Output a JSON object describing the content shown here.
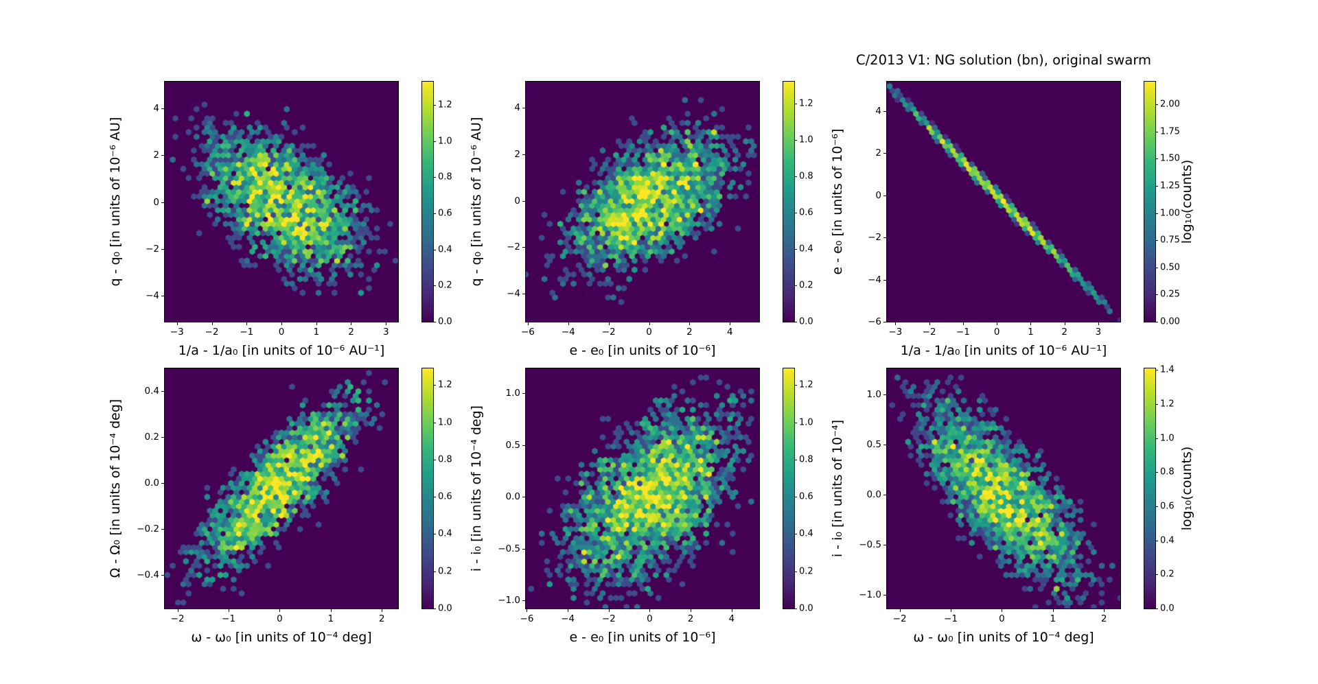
{
  "figure": {
    "title": "C/2013 V1: NG solution (bn), original swarm",
    "background": "#ffffff",
    "colormap": "viridis",
    "viridis_stops": [
      "#440154",
      "#482878",
      "#3e4989",
      "#31688e",
      "#26828e",
      "#1f9e89",
      "#35b779",
      "#6ece58",
      "#b5de2b",
      "#fde725"
    ],
    "plot_bg_color": "#440154",
    "spine_color": "#000000"
  },
  "chart_data": [
    {
      "name": "q-diff-vs-inverse-a-diff",
      "type": "hexbin",
      "row": 0,
      "col": 0,
      "seed": 101,
      "xlabel": "1/a - 1/a₀ [in units of 10⁻⁶ AU⁻¹]",
      "ylabel": "q - q₀ [in units of 10⁻⁶ AU]",
      "xlim": [
        -3.35,
        3.35
      ],
      "ylim": [
        -5.12,
        5.15
      ],
      "xticks": [
        {
          "v": -3,
          "label": "−3"
        },
        {
          "v": -2,
          "label": "−2"
        },
        {
          "v": -1,
          "label": "−1"
        },
        {
          "v": 0,
          "label": "0"
        },
        {
          "v": 1,
          "label": "1"
        },
        {
          "v": 2,
          "label": "2"
        },
        {
          "v": 3,
          "label": "3"
        }
      ],
      "yticks": [
        {
          "v": 4,
          "label": "4"
        },
        {
          "v": 2,
          "label": "2"
        },
        {
          "v": 0,
          "label": "0"
        },
        {
          "v": -2,
          "label": "−2"
        },
        {
          "v": -4,
          "label": "−4"
        }
      ],
      "colorbar": {
        "vmax": 1.33,
        "label": null,
        "ticks": [
          {
            "v": 0.0,
            "label": "0.0"
          },
          {
            "v": 0.2,
            "label": "0.2"
          },
          {
            "v": 0.4,
            "label": "0.4"
          },
          {
            "v": 0.6,
            "label": "0.6"
          },
          {
            "v": 0.8,
            "label": "0.8"
          },
          {
            "v": 1.0,
            "label": "1.0"
          },
          {
            "v": 1.2,
            "label": "1.2"
          }
        ]
      },
      "distribution": {
        "kind": "gaussian2d",
        "center": [
          0,
          0
        ],
        "sigma": [
          1.15,
          1.55
        ],
        "rho": -0.52,
        "peak_counts": 14,
        "noise": 0.55,
        "background": 0.006
      }
    },
    {
      "name": "q-diff-vs-e-diff",
      "type": "hexbin",
      "row": 0,
      "col": 1,
      "seed": 202,
      "xlabel": "e - e₀ [in units of 10⁻⁶]",
      "ylabel": "q - q₀ [in units of 10⁻⁶ AU]",
      "xlim": [
        -6.1,
        5.45
      ],
      "ylim": [
        -5.2,
        5.12
      ],
      "xticks": [
        {
          "v": -6,
          "label": "−6"
        },
        {
          "v": -4,
          "label": "−4"
        },
        {
          "v": -2,
          "label": "−2"
        },
        {
          "v": 0,
          "label": "0"
        },
        {
          "v": 2,
          "label": "2"
        },
        {
          "v": 4,
          "label": "4"
        }
      ],
      "yticks": [
        {
          "v": 4,
          "label": "4"
        },
        {
          "v": 2,
          "label": "2"
        },
        {
          "v": 0,
          "label": "0"
        },
        {
          "v": -2,
          "label": "−2"
        },
        {
          "v": -4,
          "label": "−4"
        }
      ],
      "colorbar": {
        "vmax": 1.32,
        "label": null,
        "ticks": [
          {
            "v": 0.0,
            "label": "0.0"
          },
          {
            "v": 0.2,
            "label": "0.2"
          },
          {
            "v": 0.4,
            "label": "0.4"
          },
          {
            "v": 0.6,
            "label": "0.6"
          },
          {
            "v": 0.8,
            "label": "0.8"
          },
          {
            "v": 1.0,
            "label": "1.0"
          },
          {
            "v": 1.2,
            "label": "1.2"
          }
        ]
      },
      "distribution": {
        "kind": "gaussian2d",
        "center": [
          0,
          0
        ],
        "sigma": [
          2.05,
          1.5
        ],
        "rho": 0.52,
        "peak_counts": 14,
        "noise": 0.55,
        "background": 0.006
      }
    },
    {
      "name": "e-diff-vs-inverse-a-diff",
      "type": "hexbin",
      "row": 0,
      "col": 2,
      "seed": 303,
      "xlabel": "1/a - 1/a₀ [in units of 10⁻⁶ AU⁻¹]",
      "ylabel": "e - e₀ [in units of 10⁻⁶]",
      "xlim": [
        -3.25,
        3.65
      ],
      "ylim": [
        -6.0,
        5.4
      ],
      "xticks": [
        {
          "v": -3,
          "label": "−3"
        },
        {
          "v": -2,
          "label": "−2"
        },
        {
          "v": -1,
          "label": "−1"
        },
        {
          "v": 0,
          "label": "0"
        },
        {
          "v": 1,
          "label": "1"
        },
        {
          "v": 2,
          "label": "2"
        },
        {
          "v": 3,
          "label": "3"
        }
      ],
      "yticks": [
        {
          "v": 4,
          "label": "4"
        },
        {
          "v": 2,
          "label": "2"
        },
        {
          "v": 0,
          "label": "0"
        },
        {
          "v": -2,
          "label": "−2"
        },
        {
          "v": -4,
          "label": "−4"
        },
        {
          "v": -6,
          "label": "−6"
        }
      ],
      "colorbar": {
        "vmax": 2.21,
        "label": "log₁₀(counts)",
        "ticks": [
          {
            "v": 0.0,
            "label": "0.00"
          },
          {
            "v": 0.25,
            "label": "0.25"
          },
          {
            "v": 0.5,
            "label": "0.50"
          },
          {
            "v": 0.75,
            "label": "0.75"
          },
          {
            "v": 1.0,
            "label": "1.00"
          },
          {
            "v": 1.25,
            "label": "1.25"
          },
          {
            "v": 1.5,
            "label": "1.50"
          },
          {
            "v": 1.75,
            "label": "1.75"
          },
          {
            "v": 2.0,
            "label": "2.00"
          }
        ]
      },
      "distribution": {
        "kind": "line",
        "slope": -1.62,
        "intercept": 0.0,
        "sigma_along_x": 1.3,
        "peak_counts": 130,
        "noise": 0.3,
        "thickness_px": 2.6,
        "background": 0.004
      }
    },
    {
      "name": "node-diff-vs-argperi-diff",
      "type": "hexbin",
      "row": 1,
      "col": 0,
      "seed": 404,
      "xlabel": "ω - ω₀ [in units of 10⁻⁴ deg]",
      "ylabel": "Ω - Ω₀ [in units of 10⁻⁴ deg]",
      "xlim": [
        -2.25,
        2.32
      ],
      "ylim": [
        -0.545,
        0.5
      ],
      "xticks": [
        {
          "v": -2,
          "label": "−2"
        },
        {
          "v": -1,
          "label": "−1"
        },
        {
          "v": 0,
          "label": "0"
        },
        {
          "v": 1,
          "label": "1"
        },
        {
          "v": 2,
          "label": "2"
        }
      ],
      "yticks": [
        {
          "v": 0.4,
          "label": "0.4"
        },
        {
          "v": 0.2,
          "label": "0.2"
        },
        {
          "v": 0.0,
          "label": "0.0"
        },
        {
          "v": -0.2,
          "label": "−0.2"
        },
        {
          "v": -0.4,
          "label": "−0.4"
        }
      ],
      "colorbar": {
        "vmax": 1.29,
        "label": null,
        "ticks": [
          {
            "v": 0.0,
            "label": "0.0"
          },
          {
            "v": 0.2,
            "label": "0.2"
          },
          {
            "v": 0.4,
            "label": "0.4"
          },
          {
            "v": 0.6,
            "label": "0.6"
          },
          {
            "v": 0.8,
            "label": "0.8"
          },
          {
            "v": 1.0,
            "label": "1.0"
          },
          {
            "v": 1.2,
            "label": "1.2"
          }
        ]
      },
      "distribution": {
        "kind": "gaussian2d",
        "center": [
          0,
          0
        ],
        "sigma": [
          0.78,
          0.185
        ],
        "rho": 0.82,
        "peak_counts": 15,
        "noise": 0.55,
        "background": 0.006
      }
    },
    {
      "name": "i-diff-vs-e-diff",
      "type": "hexbin",
      "row": 1,
      "col": 1,
      "seed": 505,
      "xlabel": "e - e₀ [in units of 10⁻⁶]",
      "ylabel": "i - i₀ [in units of 10⁻⁴ deg]",
      "xlim": [
        -6.05,
        5.35
      ],
      "ylim": [
        -1.08,
        1.24
      ],
      "xticks": [
        {
          "v": -6,
          "label": "−6"
        },
        {
          "v": -4,
          "label": "−4"
        },
        {
          "v": -2,
          "label": "−2"
        },
        {
          "v": 0,
          "label": "0"
        },
        {
          "v": 2,
          "label": "2"
        },
        {
          "v": 4,
          "label": "4"
        }
      ],
      "yticks": [
        {
          "v": 1.0,
          "label": "1.0"
        },
        {
          "v": 0.5,
          "label": "0.5"
        },
        {
          "v": 0.0,
          "label": "0.0"
        },
        {
          "v": -0.5,
          "label": "−0.5"
        },
        {
          "v": -1.0,
          "label": "−1.0"
        }
      ],
      "colorbar": {
        "vmax": 1.29,
        "label": null,
        "ticks": [
          {
            "v": 0.0,
            "label": "0.0"
          },
          {
            "v": 0.2,
            "label": "0.2"
          },
          {
            "v": 0.4,
            "label": "0.4"
          },
          {
            "v": 0.6,
            "label": "0.6"
          },
          {
            "v": 0.8,
            "label": "0.8"
          },
          {
            "v": 1.0,
            "label": "1.0"
          },
          {
            "v": 1.2,
            "label": "1.2"
          }
        ]
      },
      "distribution": {
        "kind": "gaussian2d",
        "center": [
          0,
          0
        ],
        "sigma": [
          2.05,
          0.42
        ],
        "rho": 0.52,
        "peak_counts": 13,
        "noise": 0.55,
        "background": 0.006
      }
    },
    {
      "name": "i-diff-vs-argperi-diff",
      "type": "hexbin",
      "row": 1,
      "col": 2,
      "seed": 606,
      "xlabel": "ω - ω₀ [in units of 10⁻⁴ deg]",
      "ylabel": "i - i₀ [in units of 10⁻⁴]",
      "xlim": [
        -2.25,
        2.32
      ],
      "ylim": [
        -1.14,
        1.26
      ],
      "xticks": [
        {
          "v": -2,
          "label": "−2"
        },
        {
          "v": -1,
          "label": "−1"
        },
        {
          "v": 0,
          "label": "0"
        },
        {
          "v": 1,
          "label": "1"
        },
        {
          "v": 2,
          "label": "2"
        }
      ],
      "yticks": [
        {
          "v": 1.0,
          "label": "1.0"
        },
        {
          "v": 0.5,
          "label": "0.5"
        },
        {
          "v": 0.0,
          "label": "0.0"
        },
        {
          "v": -0.5,
          "label": "−0.5"
        },
        {
          "v": -1.0,
          "label": "−1.0"
        }
      ],
      "colorbar": {
        "vmax": 1.41,
        "label": "log₁₀(counts)",
        "ticks": [
          {
            "v": 0.0,
            "label": "0.0"
          },
          {
            "v": 0.2,
            "label": "0.2"
          },
          {
            "v": 0.4,
            "label": "0.4"
          },
          {
            "v": 0.6,
            "label": "0.6"
          },
          {
            "v": 0.8,
            "label": "0.8"
          },
          {
            "v": 1.0,
            "label": "1.0"
          },
          {
            "v": 1.2,
            "label": "1.2"
          },
          {
            "v": 1.4,
            "label": "1.4"
          }
        ]
      },
      "distribution": {
        "kind": "gaussian2d",
        "center": [
          0,
          0
        ],
        "sigma": [
          0.8,
          0.45
        ],
        "rho": -0.75,
        "peak_counts": 16,
        "noise": 0.55,
        "background": 0.006
      }
    }
  ]
}
